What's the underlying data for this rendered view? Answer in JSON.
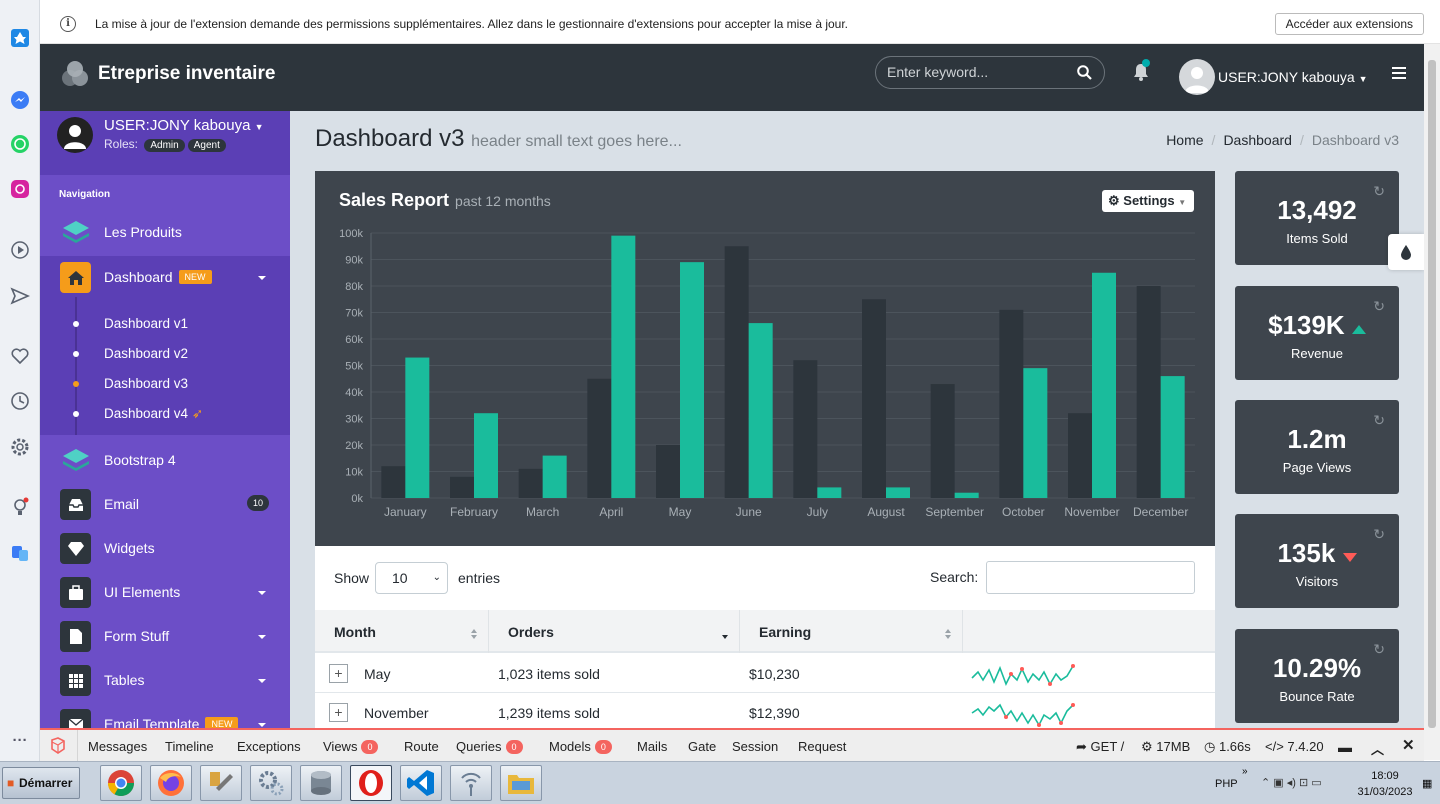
{
  "browser": {
    "notice_text": "La mise à jour de l'extension demande des permissions supplémentaires. Allez dans le gestionnaire d'extensions pour accepter la mise à jour.",
    "notice_button": "Accéder aux extensions"
  },
  "header": {
    "brand": "Etreprise inventaire",
    "search_placeholder": "Enter keyword...",
    "user": "USER:JONY kabouya"
  },
  "sidebar": {
    "user": "USER:JONY kabouya",
    "roles_label": "Roles:",
    "roles": [
      "Admin",
      "Agent"
    ],
    "nav_title": "Navigation",
    "items": [
      {
        "label": "Les Produits"
      },
      {
        "label": "Dashboard",
        "badge": "NEW"
      },
      {
        "label": "Bootstrap 4"
      },
      {
        "label": "Email",
        "badge": "10"
      },
      {
        "label": "Widgets"
      },
      {
        "label": "UI Elements"
      },
      {
        "label": "Form Stuff"
      },
      {
        "label": "Tables"
      },
      {
        "label": "Email Template",
        "badge": "NEW"
      }
    ],
    "dashboard_sub": [
      "Dashboard v1",
      "Dashboard v2",
      "Dashboard v3",
      "Dashboard v4"
    ]
  },
  "page": {
    "title": "Dashboard v3",
    "subtitle": "header small text goes here...",
    "breadcrumb": [
      "Home",
      "Dashboard",
      "Dashboard v3"
    ]
  },
  "chart_panel": {
    "title": "Sales Report",
    "subtitle": "past 12 months",
    "settings_label": "Settings"
  },
  "chart_data": {
    "type": "bar",
    "categories": [
      "January",
      "February",
      "March",
      "April",
      "May",
      "June",
      "July",
      "August",
      "September",
      "October",
      "November",
      "December"
    ],
    "series": [
      {
        "values": [
          12000,
          8000,
          11000,
          45000,
          20000,
          95000,
          52000,
          75000,
          43000,
          71000,
          32000,
          80000
        ],
        "color": "#2d353c"
      },
      {
        "values": [
          53000,
          32000,
          16000,
          99000,
          89000,
          66000,
          4000,
          4000,
          2000,
          49000,
          85000,
          46000
        ],
        "color": "#1abc9c"
      }
    ],
    "ylim": [
      0,
      100000
    ],
    "yticks": [
      "0k",
      "10k",
      "20k",
      "30k",
      "40k",
      "50k",
      "60k",
      "70k",
      "80k",
      "90k",
      "100k"
    ],
    "grid": true
  },
  "table": {
    "show_label": "Show",
    "entries_value": "10",
    "entries_label": "entries",
    "search_label": "Search:",
    "columns": [
      "Month",
      "Orders",
      "Earning"
    ],
    "rows": [
      {
        "month": "May",
        "orders": "1,023 items sold",
        "earning": "$10,230"
      },
      {
        "month": "November",
        "orders": "1,239 items sold",
        "earning": "$12,390"
      }
    ]
  },
  "stats": [
    {
      "value": "13,492",
      "label": "Items Sold"
    },
    {
      "value": "$139K",
      "label": "Revenue",
      "trend": "up"
    },
    {
      "value": "1.2m",
      "label": "Page Views"
    },
    {
      "value": "135k",
      "label": "Visitors",
      "trend": "down"
    },
    {
      "value": "10.29%",
      "label": "Bounce Rate"
    }
  ],
  "debugbar": {
    "tabs": [
      "Messages",
      "Timeline",
      "Exceptions",
      "Views",
      "Route",
      "Queries",
      "Models",
      "Mails",
      "Gate",
      "Session",
      "Request"
    ],
    "views_count": "0",
    "queries_count": "0",
    "models_count": "0",
    "method": "GET /",
    "memory": "17MB",
    "time": "1.66s",
    "php": "7.4.20"
  },
  "taskbar": {
    "start": "Démarrer",
    "lang": "PHP",
    "time": "18:09",
    "date": "31/03/2023"
  },
  "colors": {
    "accent": "#1abc9c",
    "sidebar": "#6c4ec7",
    "header": "#2d353c",
    "panel": "#3e454d",
    "up": "#1abc9c",
    "down": "#ff5b57"
  }
}
